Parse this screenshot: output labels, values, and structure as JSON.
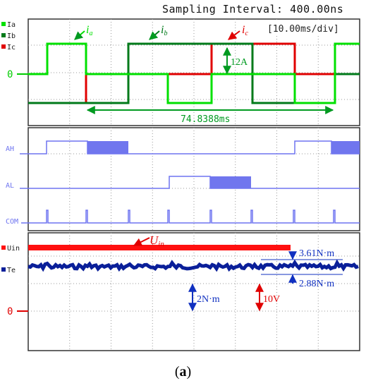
{
  "header": {
    "sampling_interval": "Sampling Interval:  400.00ns"
  },
  "timebase": "[10.00ms/div]",
  "colors": {
    "ia": "#00e000",
    "ib": "#007a1a",
    "ic": "#e00000",
    "logic": "#6e74f0",
    "uin": "#ff1010",
    "te": "#0a1f99",
    "annot_blue": "#1030c0"
  },
  "panel1": {
    "labels": {
      "ia": "Ia",
      "ib": "Ib",
      "ic": "Ic",
      "zero": "0"
    },
    "annotations": {
      "ia_sub": "a",
      "ib_sub": "b",
      "ic_sub": "c",
      "amp": "12A",
      "period": "74.8388ms"
    }
  },
  "panel2": {
    "labels": {
      "ah": "AH",
      "al": "AL",
      "com": "COM"
    }
  },
  "panel3": {
    "labels": {
      "uin": "Uin",
      "te": "Te",
      "zero": "0"
    },
    "annotations": {
      "uin_main": "U",
      "uin_sub": "in",
      "t_upper": "3.61N·m",
      "t_lower": "2.88N·m",
      "t_scale": "2N·m",
      "v_scale": "10V"
    }
  },
  "caption": {
    "open": "(",
    "letter": "a",
    "close": ")"
  }
}
